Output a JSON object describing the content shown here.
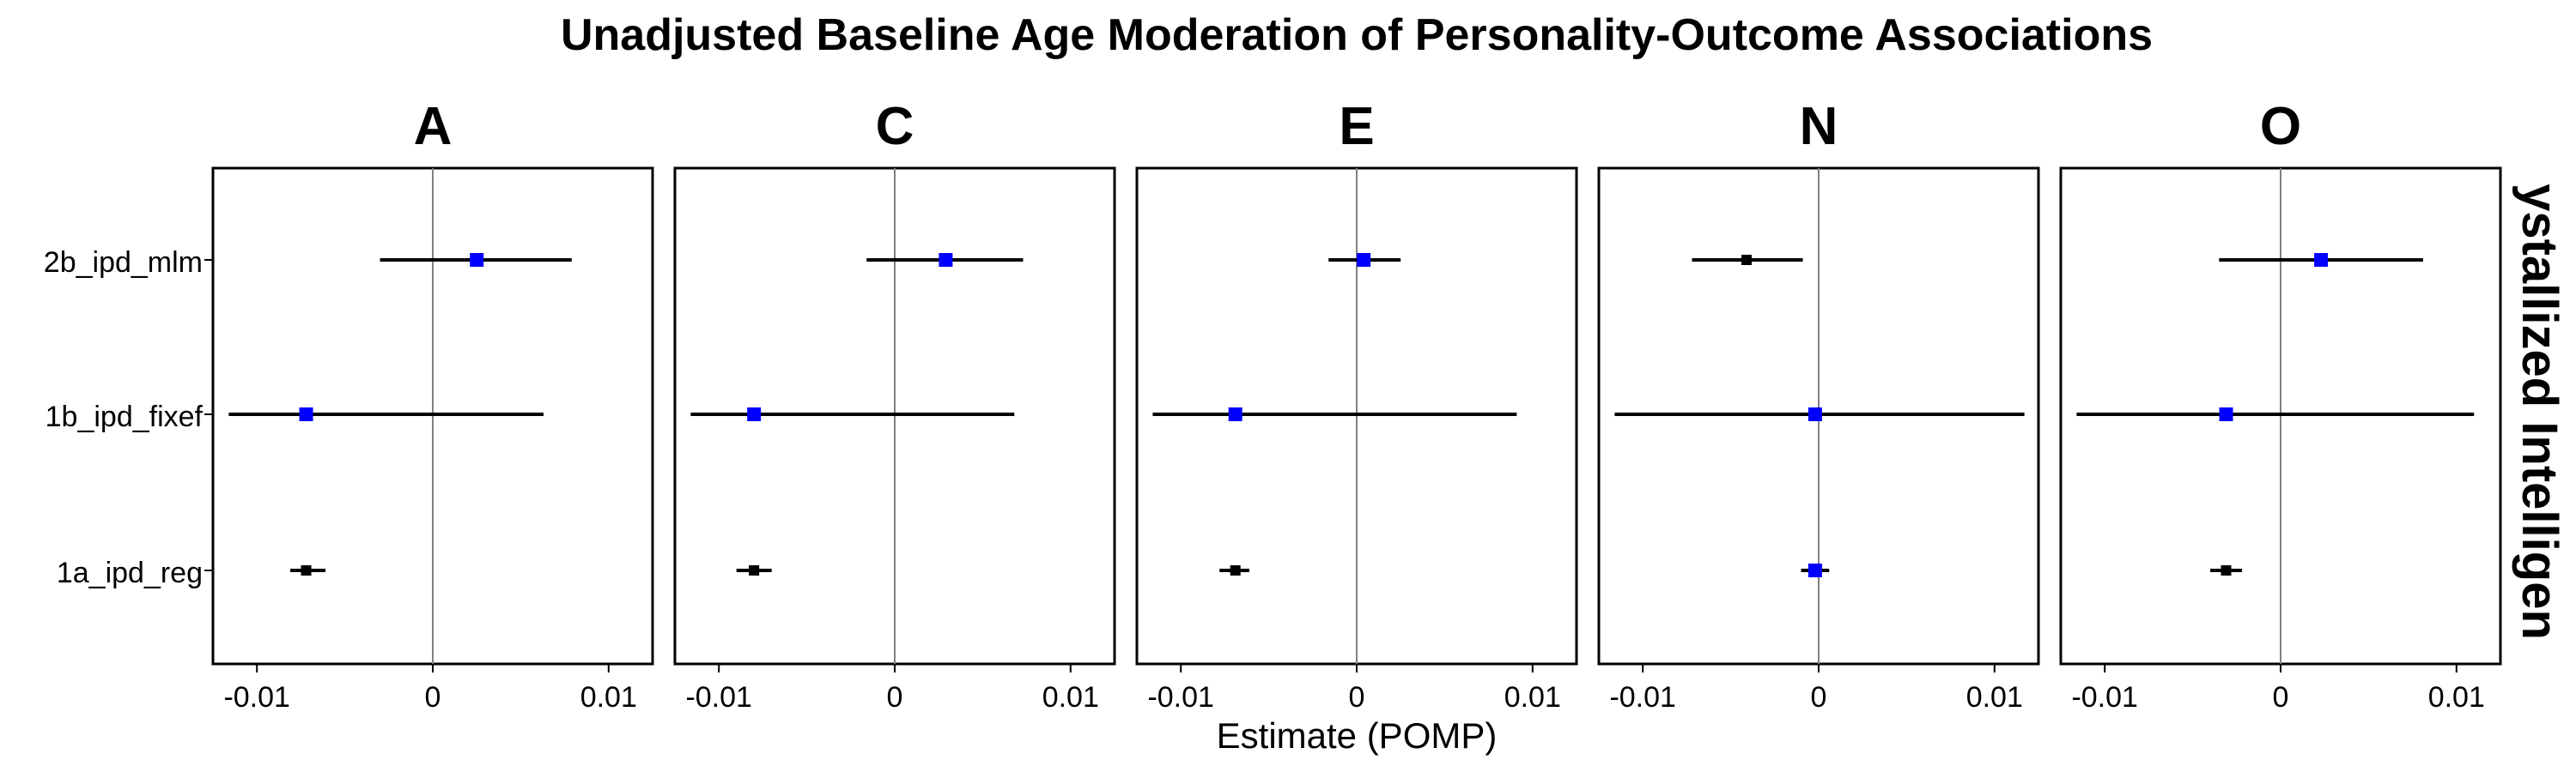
{
  "chart_data": {
    "type": "forest",
    "title": "Unadjusted Baseline Age Moderation of Personality-Outcome Associations",
    "xlabel": "Estimate (POMP)",
    "strip_right": "ystallized Intelligen",
    "xlim": [
      -0.0125,
      0.0125
    ],
    "x_ticks": [
      -0.01,
      0,
      0.01
    ],
    "x_tick_labels": [
      "-0.01",
      "0",
      "0.01"
    ],
    "categories": [
      "2b_ipd_mlm",
      "1b_ipd_fixef",
      "1a_ipd_reg"
    ],
    "colors": {
      "significant": "#0000ff",
      "nonsignificant": "#000000",
      "zero_line": "#808080"
    },
    "panels": [
      {
        "name": "A",
        "points": [
          {
            "model": "2b_ipd_mlm",
            "estimate": 0.0025,
            "lower": -0.003,
            "upper": 0.0079,
            "color": "#0000ff"
          },
          {
            "model": "1b_ipd_fixef",
            "estimate": -0.0072,
            "lower": -0.0116,
            "upper": 0.0063,
            "color": "#0000ff"
          },
          {
            "model": "1a_ipd_reg",
            "estimate": -0.0072,
            "lower": -0.0081,
            "upper": -0.0061,
            "color": "#000000"
          }
        ]
      },
      {
        "name": "C",
        "points": [
          {
            "model": "2b_ipd_mlm",
            "estimate": 0.0029,
            "lower": -0.0016,
            "upper": 0.0073,
            "color": "#0000ff"
          },
          {
            "model": "1b_ipd_fixef",
            "estimate": -0.008,
            "lower": -0.0116,
            "upper": 0.0068,
            "color": "#0000ff"
          },
          {
            "model": "1a_ipd_reg",
            "estimate": -0.008,
            "lower": -0.009,
            "upper": -0.007,
            "color": "#000000"
          }
        ]
      },
      {
        "name": "E",
        "points": [
          {
            "model": "2b_ipd_mlm",
            "estimate": 0.0004,
            "lower": -0.0016,
            "upper": 0.0025,
            "color": "#0000ff"
          },
          {
            "model": "1b_ipd_fixef",
            "estimate": -0.0069,
            "lower": -0.0116,
            "upper": 0.0091,
            "color": "#0000ff"
          },
          {
            "model": "1a_ipd_reg",
            "estimate": -0.0069,
            "lower": -0.0078,
            "upper": -0.0061,
            "color": "#000000"
          }
        ]
      },
      {
        "name": "N",
        "points": [
          {
            "model": "2b_ipd_mlm",
            "estimate": -0.0041,
            "lower": -0.0072,
            "upper": -0.0009,
            "color": "#000000"
          },
          {
            "model": "1b_ipd_fixef",
            "estimate": -0.0002,
            "lower": -0.0116,
            "upper": 0.0117,
            "color": "#0000ff"
          },
          {
            "model": "1a_ipd_reg",
            "estimate": -0.0002,
            "lower": -0.001,
            "upper": 0.0006,
            "color": "#0000ff"
          }
        ]
      },
      {
        "name": "O",
        "points": [
          {
            "model": "2b_ipd_mlm",
            "estimate": 0.0023,
            "lower": -0.0035,
            "upper": 0.0081,
            "color": "#0000ff"
          },
          {
            "model": "1b_ipd_fixef",
            "estimate": -0.0031,
            "lower": -0.0116,
            "upper": 0.011,
            "color": "#0000ff"
          },
          {
            "model": "1a_ipd_reg",
            "estimate": -0.0031,
            "lower": -0.004,
            "upper": -0.0022,
            "color": "#000000"
          }
        ]
      }
    ]
  }
}
